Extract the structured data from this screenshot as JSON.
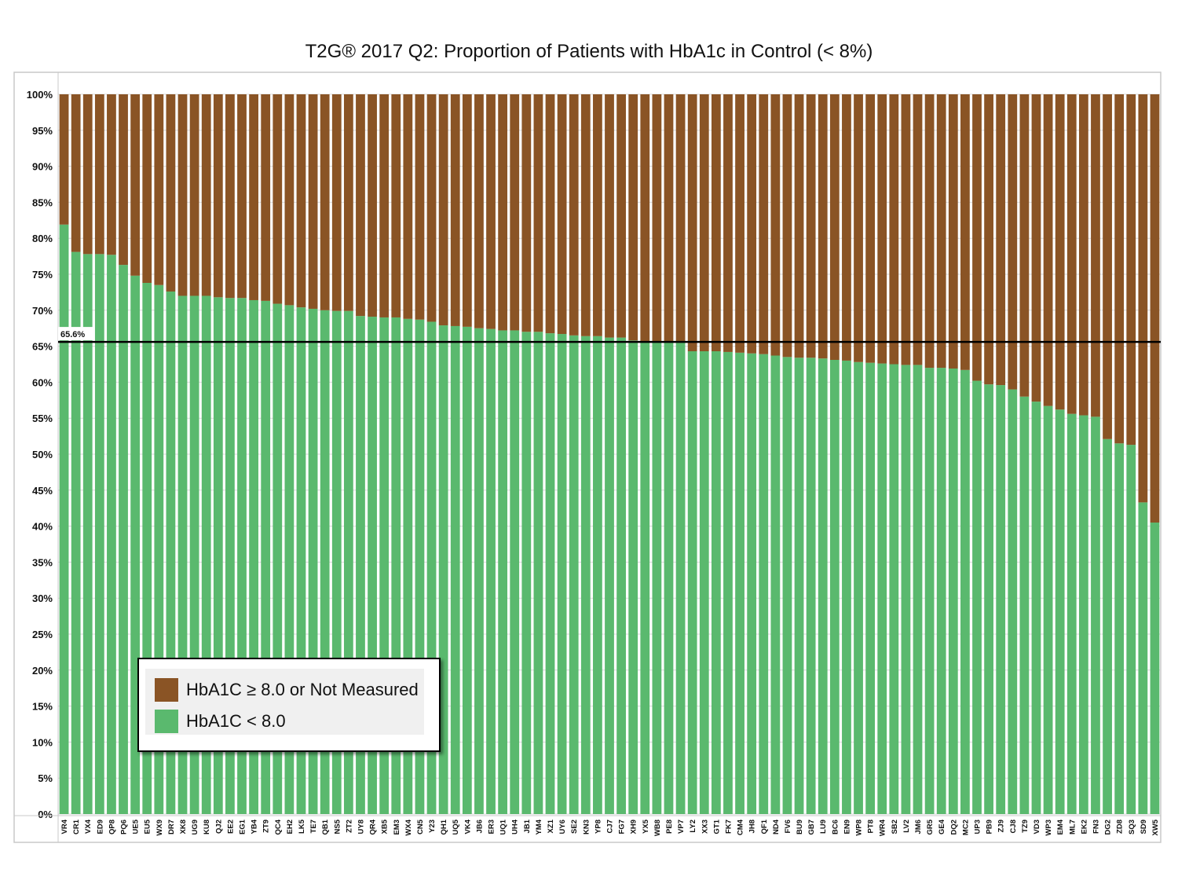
{
  "chart_data": {
    "type": "bar",
    "stacked": true,
    "title": "T2G® 2017 Q2: Proportion of Patients with HbA1c in Control (< 8%)",
    "xlabel": "",
    "ylabel": "",
    "ylim": [
      0,
      100
    ],
    "y_ticks": [
      "0%",
      "5%",
      "10%",
      "15%",
      "20%",
      "25%",
      "30%",
      "35%",
      "40%",
      "45%",
      "50%",
      "55%",
      "60%",
      "65%",
      "70%",
      "75%",
      "80%",
      "85%",
      "90%",
      "95%",
      "100%"
    ],
    "grid": true,
    "legend_position": "bottom-left",
    "reference_line": {
      "value": 65.6,
      "label": "65.6%"
    },
    "categories": [
      "VR4",
      "CR1",
      "VX4",
      "ED9",
      "QP8",
      "PQ6",
      "UE5",
      "EU5",
      "WX9",
      "DR7",
      "XK8",
      "UG9",
      "KU8",
      "QJ2",
      "EE2",
      "EG1",
      "YB4",
      "ZT9",
      "QC4",
      "EH2",
      "LK5",
      "TE7",
      "QB1",
      "NS5",
      "ZT2",
      "UY8",
      "QR4",
      "XB5",
      "EM3",
      "WX4",
      "CN5",
      "Y23",
      "QH1",
      "UQ5",
      "VK4",
      "JB6",
      "ER3",
      "UQ1",
      "UH4",
      "JB1",
      "YM4",
      "XZ1",
      "UY6",
      "SE2",
      "KN3",
      "YP8",
      "CJ7",
      "FG7",
      "XH9",
      "YX5",
      "WB8",
      "PE8",
      "VP7",
      "LY2",
      "XX3",
      "GT1",
      "FK7",
      "CM4",
      "JH8",
      "QF1",
      "ND4",
      "FV6",
      "BU9",
      "GB7",
      "LU9",
      "BC6",
      "EN9",
      "WP8",
      "PT8",
      "WR4",
      "SB2",
      "LV2",
      "JM6",
      "GR5",
      "GE4",
      "DQ2",
      "MC2",
      "UP3",
      "PB9",
      "ZJ9",
      "CJ8",
      "TZ9",
      "VD3",
      "WP3",
      "EM4",
      "ML7",
      "EK2",
      "FN3",
      "DG2",
      "ZD8",
      "SQ3",
      "SD9",
      "XW5"
    ],
    "series": [
      {
        "name": "HbA1C ≥ 8.0 or Not Measured",
        "color": "#8a5425",
        "values": [
          18.1,
          21.9,
          22.2,
          22.2,
          22.3,
          23.7,
          25.2,
          26.2,
          26.5,
          27.4,
          28,
          28,
          28,
          28.2,
          28.3,
          28.3,
          28.6,
          28.7,
          29.1,
          29.3,
          29.6,
          29.8,
          30,
          30.1,
          30.1,
          30.8,
          30.9,
          31,
          31,
          31.2,
          31.3,
          31.6,
          32.1,
          32.2,
          32.3,
          32.5,
          32.6,
          32.8,
          32.8,
          33,
          33,
          33.2,
          33.3,
          33.5,
          33.6,
          33.6,
          33.8,
          33.8,
          34.2,
          34.3,
          34.4,
          34.4,
          34.4,
          35.7,
          35.7,
          35.7,
          35.8,
          35.9,
          36,
          36.1,
          36.3,
          36.5,
          36.6,
          36.6,
          36.7,
          36.9,
          37,
          37.2,
          37.3,
          37.4,
          37.5,
          37.6,
          37.6,
          38,
          38,
          38.1,
          38.3,
          39.8,
          40.3,
          40.4,
          41,
          42,
          42.7,
          43.3,
          43.8,
          44.4,
          44.6,
          44.8,
          47.9,
          48.5,
          48.7,
          56.7,
          59.5
        ]
      },
      {
        "name": "HbA1C < 8.0",
        "color": "#5ab96e",
        "values": [
          81.9,
          78.1,
          77.8,
          77.8,
          77.7,
          76.3,
          74.8,
          73.8,
          73.5,
          72.6,
          72,
          72,
          72,
          71.8,
          71.7,
          71.7,
          71.4,
          71.3,
          70.9,
          70.7,
          70.4,
          70.2,
          70,
          69.9,
          69.9,
          69.2,
          69.1,
          69,
          69,
          68.8,
          68.7,
          68.4,
          67.9,
          67.8,
          67.7,
          67.5,
          67.4,
          67.2,
          67.2,
          67,
          67,
          66.8,
          66.7,
          66.5,
          66.4,
          66.4,
          66.2,
          66.2,
          65.8,
          65.7,
          65.6,
          65.6,
          65.6,
          64.3,
          64.3,
          64.3,
          64.2,
          64.1,
          64,
          63.9,
          63.7,
          63.5,
          63.4,
          63.4,
          63.3,
          63.1,
          63,
          62.8,
          62.7,
          62.6,
          62.5,
          62.4,
          62.4,
          62,
          62,
          61.9,
          61.7,
          60.2,
          59.7,
          59.6,
          59,
          58,
          57.3,
          56.7,
          56.2,
          55.6,
          55.4,
          55.2,
          52.1,
          51.5,
          51.3,
          43.3,
          40.5
        ]
      }
    ]
  }
}
